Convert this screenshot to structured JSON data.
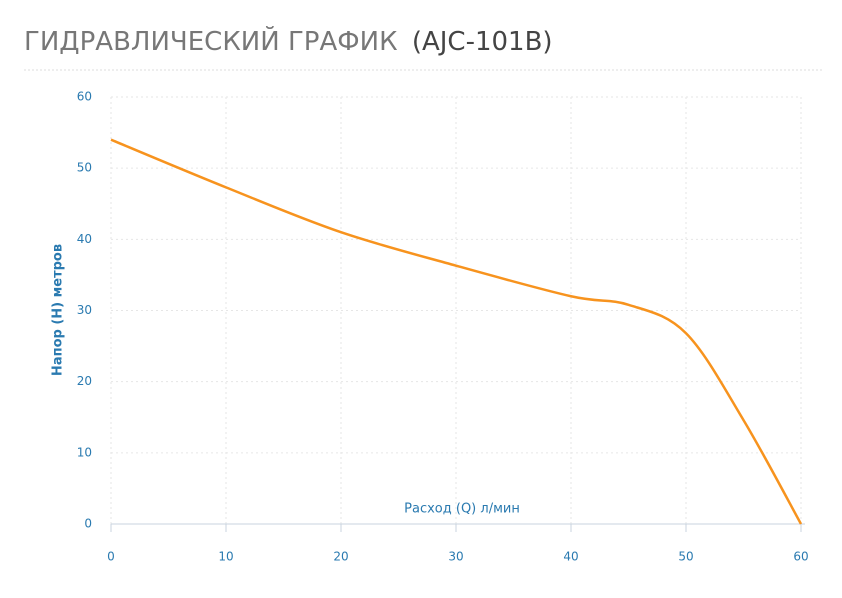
{
  "chart_data": {
    "type": "line",
    "title": "ГИДРАВЛИЧЕСКИЙ ГРАФИК",
    "subtitle": "(AJC-101B)",
    "x_label": "Расход (Q) л/мин",
    "y_label": "Напор (H) метров",
    "x": [
      0,
      10,
      20,
      30,
      40,
      45,
      50,
      55,
      60
    ],
    "series": [
      {
        "color": "#f7931e",
        "values": [
          54,
          47.3,
          41,
          36.3,
          32,
          30.8,
          26.8,
          14.6,
          0
        ]
      }
    ],
    "xlim": [
      0,
      60
    ],
    "xticks": [
      0,
      10,
      20,
      30,
      40,
      50,
      60
    ],
    "ylim": [
      0,
      60
    ],
    "yticks": [
      0,
      10,
      20,
      30,
      40,
      50,
      60
    ],
    "grid": true
  }
}
